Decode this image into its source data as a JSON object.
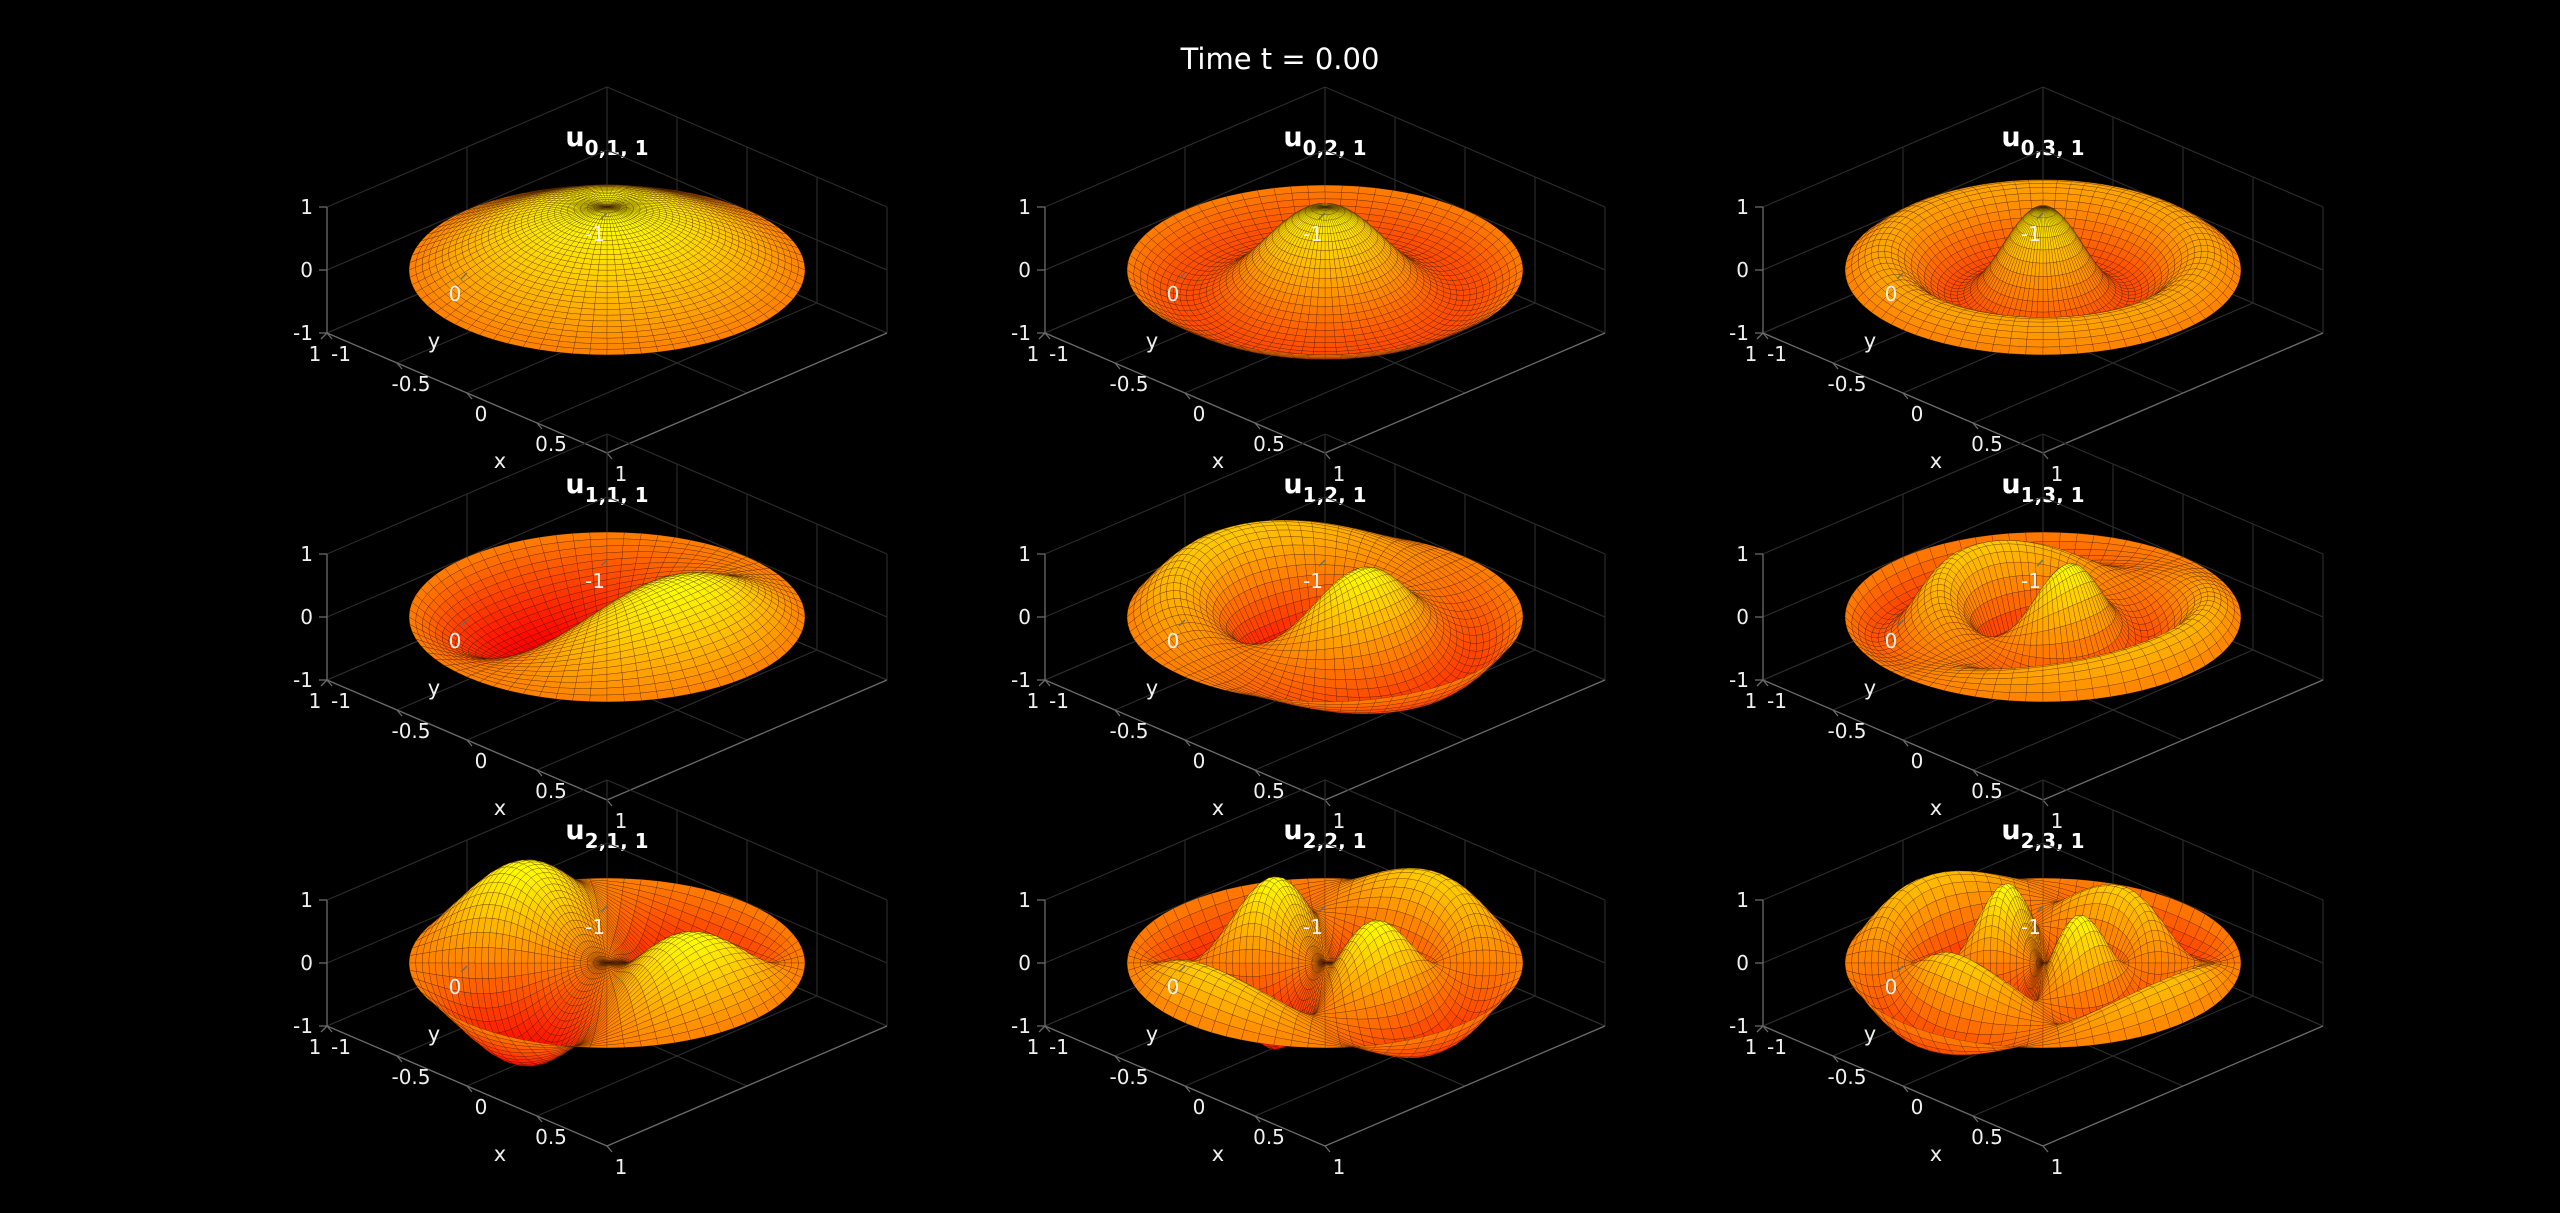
{
  "figure": {
    "title": "Time t = 0.00",
    "background": "#000000",
    "colormap": "autumn",
    "colormap_low": "#ff0000",
    "colormap_high": "#ffff00"
  },
  "chart_data": [
    {
      "type": "surface",
      "title_base": "u",
      "title_sub": "0,1, 1",
      "n": 0,
      "m": 1,
      "t": 0.0,
      "xlabel": "x",
      "ylabel": "y",
      "xlim": [
        -1,
        1
      ],
      "ylim": [
        -1,
        1
      ],
      "zlim": [
        -1,
        1
      ],
      "xticks": [
        "-1",
        "-0.5",
        "0",
        "0.5",
        "1"
      ],
      "yticks": [
        "-1",
        "0",
        "1"
      ],
      "zticks": [
        "-1",
        "0",
        "1"
      ],
      "grid": true,
      "domain": "unit disk"
    },
    {
      "type": "surface",
      "title_base": "u",
      "title_sub": "0,2, 1",
      "n": 0,
      "m": 2,
      "t": 0.0,
      "xlabel": "x",
      "ylabel": "y",
      "xlim": [
        -1,
        1
      ],
      "ylim": [
        -1,
        1
      ],
      "zlim": [
        -1,
        1
      ],
      "xticks": [
        "-1",
        "-0.5",
        "0",
        "0.5",
        "1"
      ],
      "yticks": [
        "-1",
        "0",
        "1"
      ],
      "zticks": [
        "-1",
        "0",
        "1"
      ],
      "grid": true,
      "domain": "unit disk"
    },
    {
      "type": "surface",
      "title_base": "u",
      "title_sub": "0,3, 1",
      "n": 0,
      "m": 3,
      "t": 0.0,
      "xlabel": "x",
      "ylabel": "y",
      "xlim": [
        -1,
        1
      ],
      "ylim": [
        -1,
        1
      ],
      "zlim": [
        -1,
        1
      ],
      "xticks": [
        "-1",
        "-0.5",
        "0",
        "0.5",
        "1"
      ],
      "yticks": [
        "-1",
        "0",
        "1"
      ],
      "zticks": [
        "-1",
        "0",
        "1"
      ],
      "grid": true,
      "domain": "unit disk"
    },
    {
      "type": "surface",
      "title_base": "u",
      "title_sub": "1,1, 1",
      "n": 1,
      "m": 1,
      "t": 0.0,
      "xlabel": "x",
      "ylabel": "y",
      "xlim": [
        -1,
        1
      ],
      "ylim": [
        -1,
        1
      ],
      "zlim": [
        -1,
        1
      ],
      "xticks": [
        "-1",
        "-0.5",
        "0",
        "0.5",
        "1"
      ],
      "yticks": [
        "-1",
        "0",
        "1"
      ],
      "zticks": [
        "-1",
        "0",
        "1"
      ],
      "grid": true,
      "domain": "unit disk"
    },
    {
      "type": "surface",
      "title_base": "u",
      "title_sub": "1,2, 1",
      "n": 1,
      "m": 2,
      "t": 0.0,
      "xlabel": "x",
      "ylabel": "y",
      "xlim": [
        -1,
        1
      ],
      "ylim": [
        -1,
        1
      ],
      "zlim": [
        -1,
        1
      ],
      "xticks": [
        "-1",
        "-0.5",
        "0",
        "0.5",
        "1"
      ],
      "yticks": [
        "-1",
        "0",
        "1"
      ],
      "zticks": [
        "-1",
        "0",
        "1"
      ],
      "grid": true,
      "domain": "unit disk"
    },
    {
      "type": "surface",
      "title_base": "u",
      "title_sub": "1,3, 1",
      "n": 1,
      "m": 3,
      "t": 0.0,
      "xlabel": "x",
      "ylabel": "y",
      "xlim": [
        -1,
        1
      ],
      "ylim": [
        -1,
        1
      ],
      "zlim": [
        -1,
        1
      ],
      "xticks": [
        "-1",
        "-0.5",
        "0",
        "0.5",
        "1"
      ],
      "yticks": [
        "-1",
        "0",
        "1"
      ],
      "zticks": [
        "-1",
        "0",
        "1"
      ],
      "grid": true,
      "domain": "unit disk"
    },
    {
      "type": "surface",
      "title_base": "u",
      "title_sub": "2,1, 1",
      "n": 2,
      "m": 1,
      "t": 0.0,
      "xlabel": "x",
      "ylabel": "y",
      "xlim": [
        -1,
        1
      ],
      "ylim": [
        -1,
        1
      ],
      "zlim": [
        -1,
        1
      ],
      "xticks": [
        "-1",
        "-0.5",
        "0",
        "0.5",
        "1"
      ],
      "yticks": [
        "-1",
        "0",
        "1"
      ],
      "zticks": [
        "-1",
        "0",
        "1"
      ],
      "grid": true,
      "domain": "unit disk"
    },
    {
      "type": "surface",
      "title_base": "u",
      "title_sub": "2,2, 1",
      "n": 2,
      "m": 2,
      "t": 0.0,
      "xlabel": "x",
      "ylabel": "y",
      "xlim": [
        -1,
        1
      ],
      "ylim": [
        -1,
        1
      ],
      "zlim": [
        -1,
        1
      ],
      "xticks": [
        "-1",
        "-0.5",
        "0",
        "0.5",
        "1"
      ],
      "yticks": [
        "-1",
        "0",
        "1"
      ],
      "zticks": [
        "-1",
        "0",
        "1"
      ],
      "grid": true,
      "domain": "unit disk"
    },
    {
      "type": "surface",
      "title_base": "u",
      "title_sub": "2,3, 1",
      "n": 2,
      "m": 3,
      "t": 0.0,
      "xlabel": "x",
      "ylabel": "y",
      "xlim": [
        -1,
        1
      ],
      "ylim": [
        -1,
        1
      ],
      "zlim": [
        -1,
        1
      ],
      "xticks": [
        "-1",
        "-0.5",
        "0",
        "0.5",
        "1"
      ],
      "yticks": [
        "-1",
        "0",
        "1"
      ],
      "zticks": [
        "-1",
        "0",
        "1"
      ],
      "grid": true,
      "domain": "unit disk"
    }
  ]
}
